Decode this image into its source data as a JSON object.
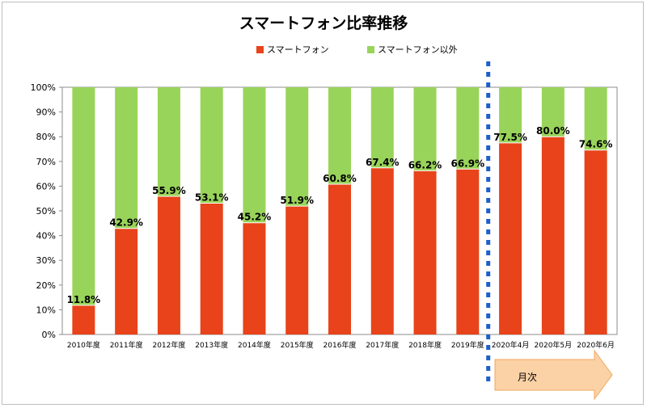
{
  "chart_data": {
    "type": "bar",
    "stacked": true,
    "title": "スマートフォン比率推移",
    "categories": [
      "2010年度",
      "2011年度",
      "2012年度",
      "2013年度",
      "2014年度",
      "2015年度",
      "2016年度",
      "2017年度",
      "2018年度",
      "2019年度",
      "2020年4月",
      "2020年5月",
      "2020年6月"
    ],
    "series": [
      {
        "name": "スマートフォン",
        "color": "#e8431a",
        "values": [
          11.8,
          42.9,
          55.9,
          53.1,
          45.2,
          51.9,
          60.8,
          67.4,
          66.2,
          66.9,
          77.5,
          80.0,
          74.6
        ]
      },
      {
        "name": "スマートフォン以外",
        "color": "#99d45a",
        "values": [
          88.2,
          57.1,
          44.1,
          46.9,
          54.8,
          48.1,
          39.2,
          32.6,
          33.8,
          33.1,
          22.5,
          20.0,
          25.4
        ]
      }
    ],
    "data_labels": [
      "11.8%",
      "42.9%",
      "55.9%",
      "53.1%",
      "45.2%",
      "51.9%",
      "60.8%",
      "67.4%",
      "66.2%",
      "66.9%",
      "77.5%",
      "80.0%",
      "74.6%"
    ],
    "yticks": [
      "0%",
      "10%",
      "20%",
      "30%",
      "40%",
      "50%",
      "60%",
      "70%",
      "80%",
      "90%",
      "100%"
    ],
    "ylim": [
      0,
      100
    ],
    "legend_position": "top",
    "annotation": {
      "text": "月次"
    }
  }
}
